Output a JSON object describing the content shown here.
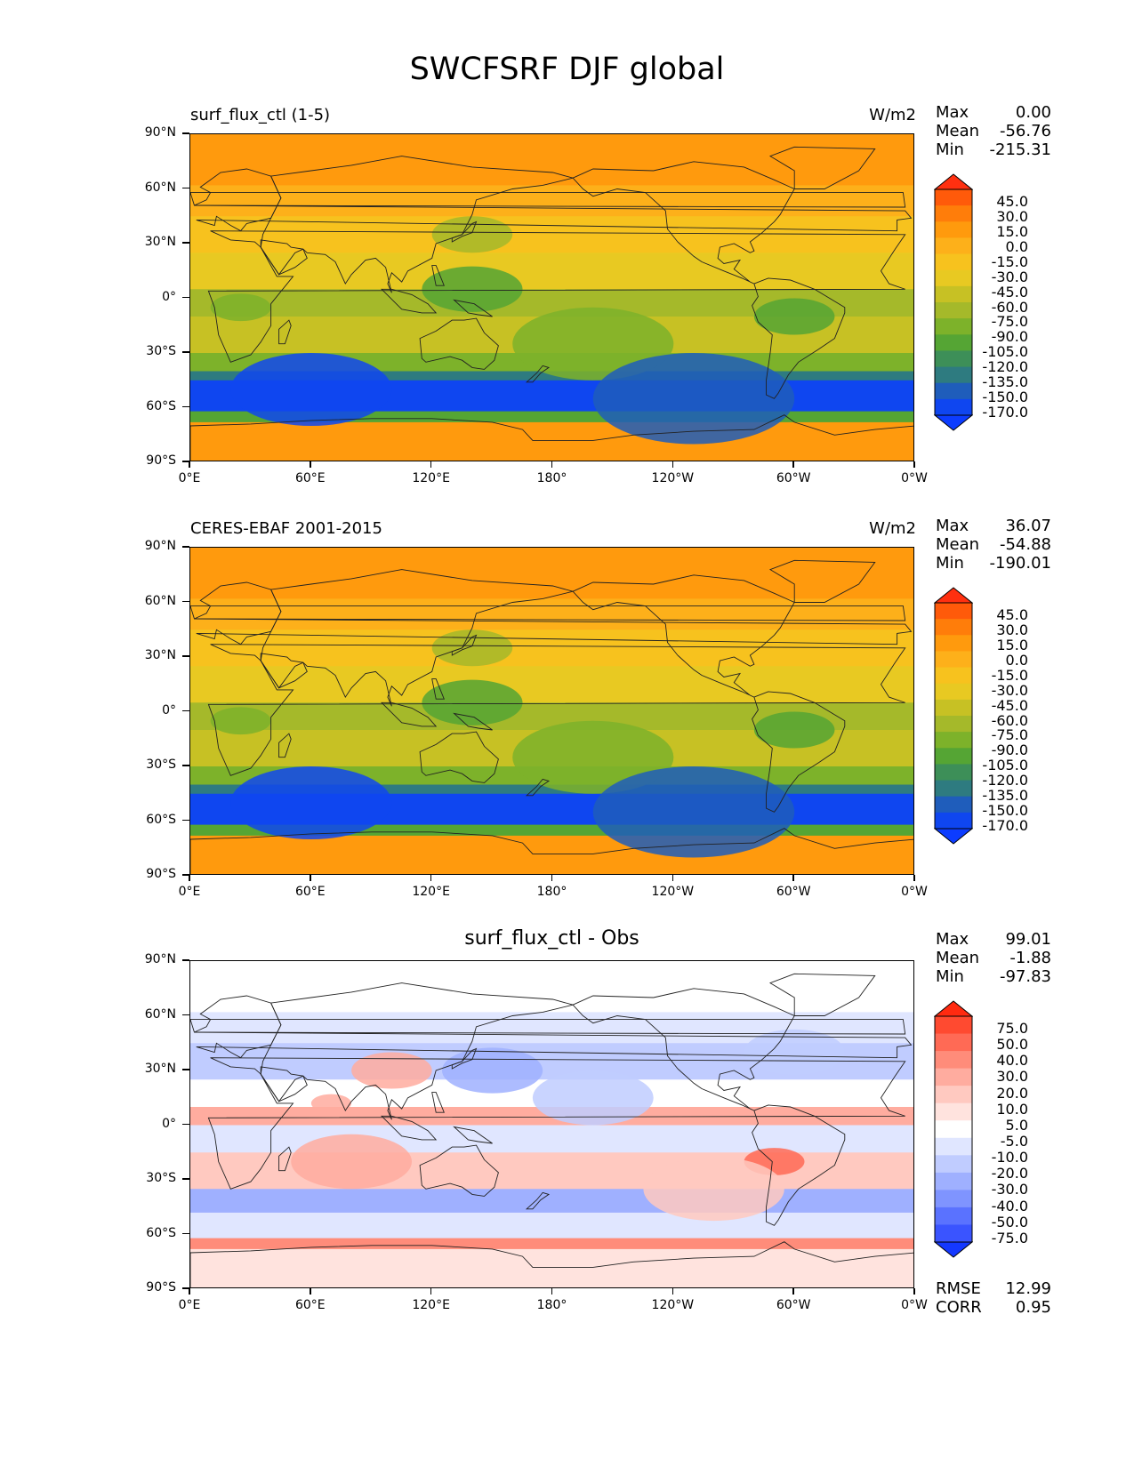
{
  "title": "SWCFSRF DJF global",
  "x_ticks": [
    "0°E",
    "60°E",
    "120°E",
    "180°",
    "120°W",
    "60°W",
    "0°W"
  ],
  "y_ticks": [
    "90°N",
    "60°N",
    "30°N",
    "0°",
    "30°S",
    "60°S",
    "90°S"
  ],
  "panels": [
    {
      "title_left": "surf_flux_ctl (1-5)",
      "title_right": "W/m2",
      "title_center": "",
      "stats": {
        "max_label": "Max",
        "max": "0.00",
        "mean_label": "Mean",
        "mean": "-56.76",
        "min_label": "Min",
        "min": "-215.31"
      },
      "colorbar": {
        "levels": [
          "45.0",
          "30.0",
          "15.0",
          "0.0",
          "-15.0",
          "-30.0",
          "-45.0",
          "-60.0",
          "-75.0",
          "-90.0",
          "-105.0",
          "-120.0",
          "-135.0",
          "-150.0",
          "-170.0"
        ],
        "colors": [
          "#ff3010",
          "#ff5a0a",
          "#ff7d0a",
          "#ff9a0d",
          "#fdb01a",
          "#f7c21e",
          "#e8c922",
          "#c7c124",
          "#a5b92a",
          "#7db22a",
          "#55a534",
          "#3d8f58",
          "#2e7b80",
          "#1f5dbb",
          "#0f46f0",
          "#0c3cff"
        ]
      }
    },
    {
      "title_left": "CERES-EBAF 2001-2015",
      "title_right": "W/m2",
      "title_center": "",
      "stats": {
        "max_label": "Max",
        "max": "36.07",
        "mean_label": "Mean",
        "mean": "-54.88",
        "min_label": "Min",
        "min": "-190.01"
      },
      "colorbar": {
        "levels": [
          "45.0",
          "30.0",
          "15.0",
          "0.0",
          "-15.0",
          "-30.0",
          "-45.0",
          "-60.0",
          "-75.0",
          "-90.0",
          "-105.0",
          "-120.0",
          "-135.0",
          "-150.0",
          "-170.0"
        ],
        "colors": [
          "#ff3010",
          "#ff5a0a",
          "#ff7d0a",
          "#ff9a0d",
          "#fdb01a",
          "#f7c21e",
          "#e8c922",
          "#c7c124",
          "#a5b92a",
          "#7db22a",
          "#55a534",
          "#3d8f58",
          "#2e7b80",
          "#1f5dbb",
          "#0f46f0",
          "#0c3cff"
        ]
      }
    },
    {
      "title_left": "",
      "title_right": "",
      "title_center": "surf_flux_ctl - Obs",
      "stats": {
        "max_label": "Max",
        "max": "99.01",
        "mean_label": "Mean",
        "mean": "-1.88",
        "min_label": "Min",
        "min": "-97.83"
      },
      "colorbar": {
        "levels": [
          "75.0",
          "50.0",
          "40.0",
          "30.0",
          "20.0",
          "10.0",
          "5.0",
          "-5.0",
          "-10.0",
          "-20.0",
          "-30.0",
          "-40.0",
          "-50.0",
          "-75.0"
        ],
        "colors": [
          "#ff2a10",
          "#ff4a30",
          "#ff6a55",
          "#ff8c7a",
          "#ffac9f",
          "#ffc9c0",
          "#ffe3de",
          "#ffffff",
          "#e0e6ff",
          "#c0ccff",
          "#9fb0ff",
          "#7f94ff",
          "#5a72ff",
          "#3a54ff",
          "#1438ff"
        ]
      },
      "footer": {
        "rmse_label": "RMSE",
        "rmse": "12.99",
        "corr_label": "CORR",
        "corr": "0.95"
      }
    }
  ]
}
